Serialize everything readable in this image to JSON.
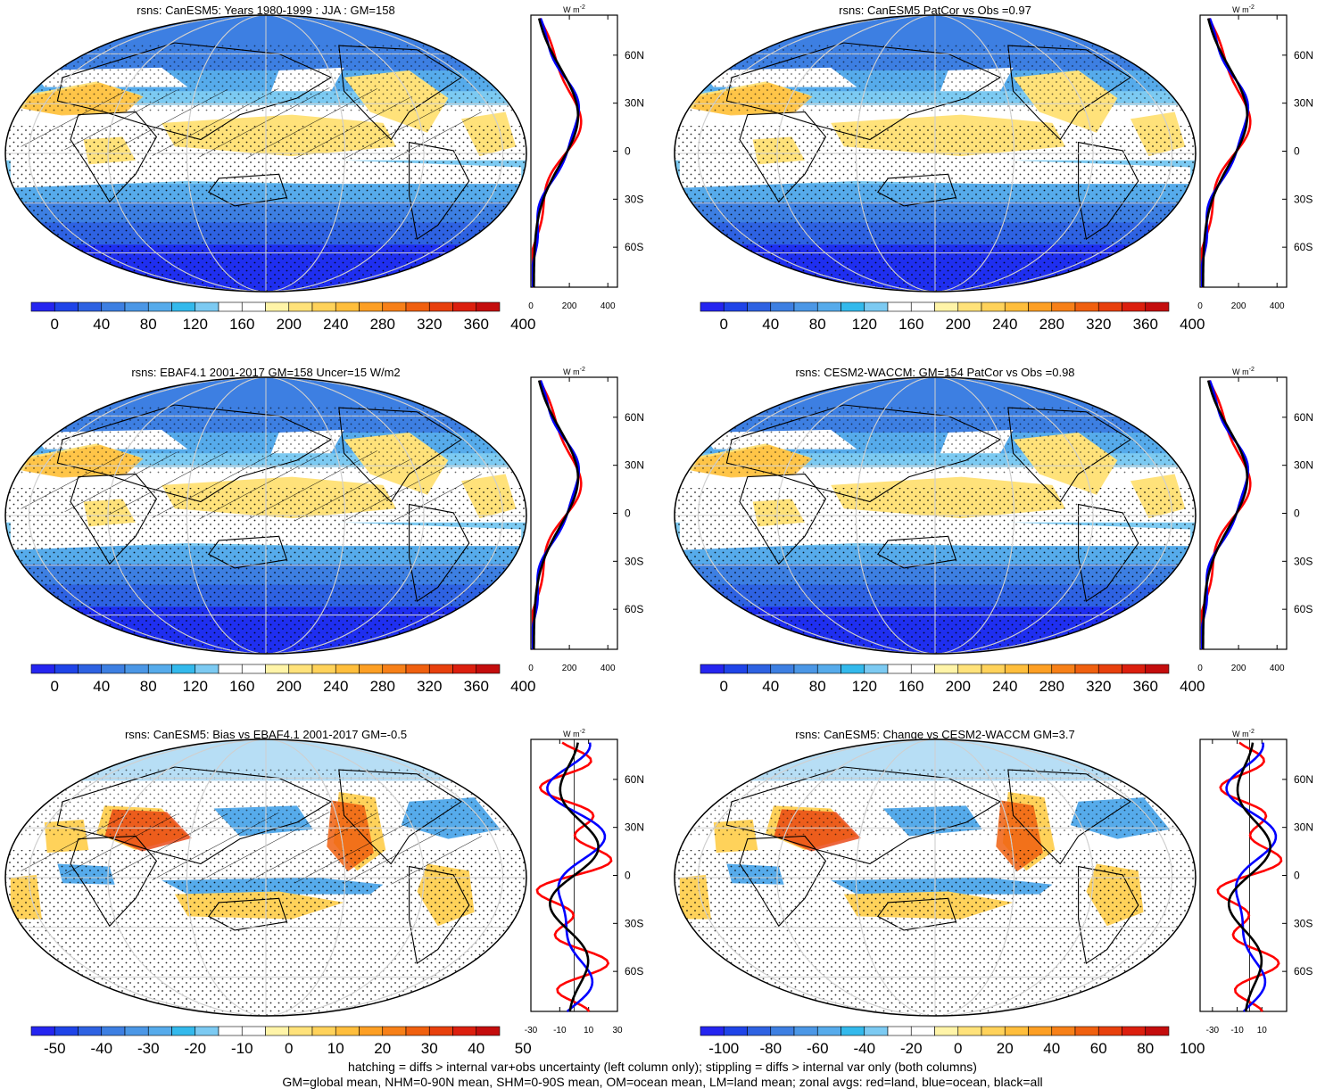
{
  "palettes": {
    "abs": [
      "#2525f0",
      "#1f44e8",
      "#2e62e2",
      "#3d7fe2",
      "#4b97e6",
      "#56abeb",
      "#33b9ec",
      "#7ccaf2",
      "#ffffff",
      "#ffffff",
      "#fff4a8",
      "#ffe27a",
      "#ffd25a",
      "#ffbe3c",
      "#fd9f24",
      "#f78018",
      "#f0600f",
      "#e8400d",
      "#dc1f0e",
      "#c40d0d"
    ],
    "bias": [
      "#2525f0",
      "#1f44e8",
      "#2e62e2",
      "#3d7fe2",
      "#4b97e6",
      "#56abeb",
      "#33b9ec",
      "#7ccaf2",
      "#ffffff",
      "#ffffff",
      "#fff4a8",
      "#ffe27a",
      "#ffd25a",
      "#ffbe3c",
      "#fd9f24",
      "#f78018",
      "#f0600f",
      "#e8400d",
      "#dc1f0e",
      "#c40d0d"
    ],
    "zonal_colors": {
      "land": "#ff0000",
      "ocean": "#0000ff",
      "all": "#000000"
    }
  },
  "panels": [
    {
      "title": "rsns: CanESM5: Years 1980-1999 : JJA : GM=158",
      "variant": "abs",
      "hatching": true,
      "colorbar_labels": [
        "0",
        "40",
        "80",
        "120",
        "160",
        "200",
        "240",
        "280",
        "320",
        "360",
        "400"
      ],
      "profile_unit": "W m",
      "profile_unit_sup": "-2",
      "profile_xlim": [
        0,
        450
      ],
      "profile_xticks": [
        "0",
        "200",
        "400"
      ],
      "profile_xtick_values": [
        0,
        200,
        400
      ],
      "lat_labels": [
        "60N",
        "30N",
        "0",
        "30S",
        "60S"
      ]
    },
    {
      "title": "rsns: CanESM5 PatCor vs Obs =0.97",
      "variant": "abs",
      "hatching": false,
      "colorbar_labels": [
        "0",
        "40",
        "80",
        "120",
        "160",
        "200",
        "240",
        "280",
        "320",
        "360",
        "400"
      ],
      "profile_unit": "W m",
      "profile_unit_sup": "-2",
      "profile_xlim": [
        0,
        450
      ],
      "profile_xticks": [
        "0",
        "200",
        "400"
      ],
      "profile_xtick_values": [
        0,
        200,
        400
      ],
      "lat_labels": [
        "60N",
        "30N",
        "0",
        "30S",
        "60S"
      ]
    },
    {
      "title": "rsns: EBAF4.1 2001-2017 GM=158 Uncer=15 W/m2",
      "variant": "abs",
      "hatching": true,
      "colorbar_labels": [
        "0",
        "40",
        "80",
        "120",
        "160",
        "200",
        "240",
        "280",
        "320",
        "360",
        "400"
      ],
      "profile_unit": "W m",
      "profile_unit_sup": "-2",
      "profile_xlim": [
        0,
        450
      ],
      "profile_xticks": [
        "0",
        "200",
        "400"
      ],
      "profile_xtick_values": [
        0,
        200,
        400
      ],
      "lat_labels": [
        "60N",
        "30N",
        "0",
        "30S",
        "60S"
      ]
    },
    {
      "title": "rsns: CESM2-WACCM: GM=154 PatCor vs Obs =0.98",
      "variant": "abs",
      "hatching": false,
      "colorbar_labels": [
        "0",
        "40",
        "80",
        "120",
        "160",
        "200",
        "240",
        "280",
        "320",
        "360",
        "400"
      ],
      "profile_unit": "W m",
      "profile_unit_sup": "-2",
      "profile_xlim": [
        0,
        450
      ],
      "profile_xticks": [
        "0",
        "200",
        "400"
      ],
      "profile_xtick_values": [
        0,
        200,
        400
      ],
      "lat_labels": [
        "60N",
        "30N",
        "0",
        "30S",
        "60S"
      ]
    },
    {
      "title": "rsns: CanESM5: Bias vs EBAF4.1 2001-2017 GM=-0.5",
      "variant": "bias",
      "hatching": true,
      "colorbar_labels": [
        "-50",
        "-40",
        "-30",
        "-20",
        "-10",
        "0",
        "10",
        "20",
        "30",
        "40",
        "50"
      ],
      "profile_unit": "W m",
      "profile_unit_sup": "-2",
      "profile_xlim": [
        -30,
        30
      ],
      "profile_xticks": [
        "-30",
        "-10",
        "10",
        "30"
      ],
      "profile_xtick_values": [
        -30,
        -10,
        10,
        30
      ],
      "lat_labels": [
        "60N",
        "30N",
        "0",
        "30S",
        "60S"
      ]
    },
    {
      "title": "rsns: CanESM5: Change vs CESM2-WACCM GM=3.7",
      "variant": "bias",
      "hatching": false,
      "colorbar_labels": [
        "-100",
        "-80",
        "-60",
        "-40",
        "-20",
        "0",
        "20",
        "40",
        "60",
        "80",
        "100"
      ],
      "profile_unit": "W m",
      "profile_unit_sup": "-2",
      "profile_xlim": [
        -40,
        30
      ],
      "profile_xticks": [
        "-30",
        "-10",
        "10"
      ],
      "profile_xtick_values": [
        -30,
        -10,
        10
      ],
      "lat_labels": [
        "60N",
        "30N",
        "0",
        "30S",
        "60S"
      ]
    }
  ],
  "footnotes": [
    "hatching = diffs > internal var+obs uncertainty (left column only); stippling = diffs > internal var only (both columns)",
    "GM=global mean, NHM=0-90N mean, SHM=0-90S mean, OM=ocean mean, LM=land mean; zonal avgs: red=land, blue=ocean, black=all"
  ]
}
